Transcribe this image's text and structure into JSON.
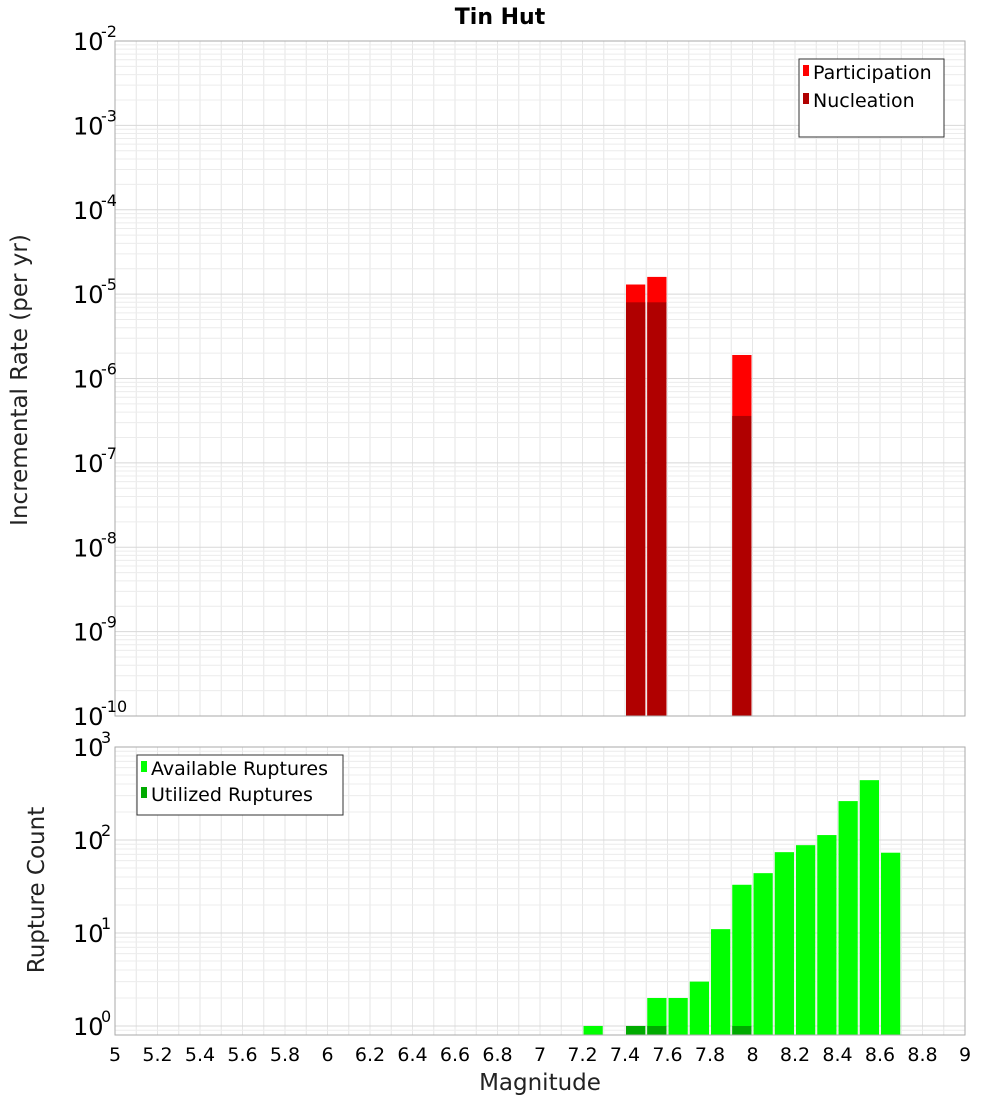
{
  "chart_data": [
    {
      "type": "bar",
      "title": "Tin Hut",
      "xlabel": "",
      "ylabel": "Incremental Rate (per yr)",
      "yscale": "log",
      "xlim": [
        5,
        9
      ],
      "ylim": [
        1e-10,
        0.01
      ],
      "y_tick_exponents": [
        -10,
        -9,
        -8,
        -7,
        -6,
        -5,
        -4,
        -3,
        -2
      ],
      "bar_width": 0.1,
      "grid": true,
      "legend_position": "top-right",
      "colors": {
        "Participation": "#ff0000",
        "Nucleation": "#b00000"
      },
      "series": [
        {
          "name": "Participation",
          "x": [
            7.45,
            7.55,
            7.95
          ],
          "values": [
            1.3e-05,
            1.6e-05,
            1.9e-06
          ]
        },
        {
          "name": "Nucleation",
          "x": [
            7.45,
            7.55,
            7.95
          ],
          "values": [
            8e-06,
            8e-06,
            3.6e-07
          ]
        }
      ]
    },
    {
      "type": "bar",
      "title": "",
      "xlabel": "Magnitude",
      "ylabel": "Rupture Count",
      "yscale": "log",
      "xlim": [
        5,
        9
      ],
      "ylim": [
        0.8,
        1000
      ],
      "y_tick_exponents": [
        0,
        1,
        2,
        3
      ],
      "x_ticks": [
        "5",
        "5.2",
        "5.4",
        "5.6",
        "5.8",
        "6",
        "6.2",
        "6.4",
        "6.6",
        "6.8",
        "7",
        "7.2",
        "7.4",
        "7.6",
        "7.8",
        "8",
        "8.2",
        "8.4",
        "8.6",
        "8.8",
        "9"
      ],
      "bar_width": 0.1,
      "grid": true,
      "legend_position": "top-left",
      "colors": {
        "Available Ruptures": "#00ff00",
        "Utilized Ruptures": "#00aa00"
      },
      "series": [
        {
          "name": "Available Ruptures",
          "x": [
            7.25,
            7.45,
            7.55,
            7.65,
            7.75,
            7.85,
            7.95,
            8.05,
            8.15,
            8.25,
            8.35,
            8.45,
            8.55,
            8.65
          ],
          "values": [
            1,
            1,
            2,
            2,
            3,
            11,
            33,
            44,
            74,
            88,
            113,
            262,
            440,
            73
          ]
        },
        {
          "name": "Utilized Ruptures",
          "x": [
            7.45,
            7.55,
            7.95
          ],
          "values": [
            1,
            1,
            1
          ]
        }
      ]
    }
  ]
}
